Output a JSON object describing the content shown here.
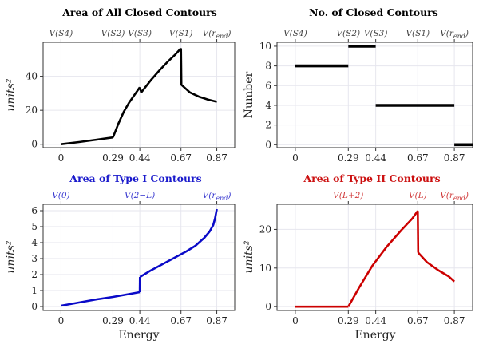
{
  "chart_data": [
    {
      "id": "p1",
      "type": "line",
      "title": "Area of All Closed Contours",
      "title_color": "#000000",
      "line_color": "#000000",
      "top_ticks": [
        {
          "label": "V(S4)",
          "x": 0
        },
        {
          "label": "V(S2)",
          "x": 0.29
        },
        {
          "label": "V(S3)",
          "x": 0.44
        },
        {
          "label": "V(S1)",
          "x": 0.67
        },
        {
          "label": "V(r_end)",
          "x": 0.87
        }
      ],
      "top_tick_color": "#444444",
      "xticks": [
        0,
        0.29,
        0.44,
        0.67,
        0.87
      ],
      "yticks": [
        0,
        20,
        40
      ],
      "xlim": [
        -0.1,
        0.97
      ],
      "ylim": [
        -2,
        60
      ],
      "xlabel": "",
      "ylabel": "units²",
      "ylabel_italic": true,
      "grid": true,
      "series": [
        {
          "x": [
            0,
            0.1,
            0.2,
            0.29
          ],
          "y": [
            0,
            1.3,
            2.7,
            4
          ]
        },
        {
          "x": [
            0.29,
            0.32,
            0.35,
            0.38,
            0.41,
            0.44
          ],
          "y": [
            4,
            12,
            19,
            24.5,
            29,
            33.5
          ]
        },
        {
          "x": [
            0.44,
            0.448
          ],
          "y": [
            33.5,
            30.5
          ]
        },
        {
          "x": [
            0.448,
            0.5,
            0.55,
            0.6,
            0.64,
            0.67
          ],
          "y": [
            30.5,
            37.5,
            43.5,
            49,
            53,
            56.5
          ]
        },
        {
          "x": [
            0.67,
            0.672
          ],
          "y": [
            56.5,
            35
          ]
        },
        {
          "x": [
            0.672,
            0.72,
            0.77,
            0.82,
            0.87
          ],
          "y": [
            35,
            30.5,
            28,
            26.3,
            25
          ]
        }
      ]
    },
    {
      "id": "p2",
      "type": "line",
      "title": "No. of Closed  Contours",
      "title_color": "#000000",
      "line_color": "#000000",
      "top_ticks": [
        {
          "label": "V(S4)",
          "x": 0
        },
        {
          "label": "V(S2)",
          "x": 0.29
        },
        {
          "label": "V(S3)",
          "x": 0.44
        },
        {
          "label": "V(S1)",
          "x": 0.67
        },
        {
          "label": "V(r_end)",
          "x": 0.87
        }
      ],
      "top_tick_color": "#444444",
      "xticks": [
        0,
        0.29,
        0.44,
        0.67,
        0.87
      ],
      "yticks": [
        0,
        2,
        4,
        6,
        8,
        10
      ],
      "xlim": [
        -0.1,
        0.97
      ],
      "ylim": [
        -0.3,
        10.4
      ],
      "xlabel": "",
      "ylabel": "Number",
      "ylabel_italic": false,
      "grid": true,
      "series": [
        {
          "x": [
            0,
            0.29
          ],
          "y": [
            8,
            8
          ]
        },
        {
          "x": [
            0.29,
            0.44
          ],
          "y": [
            10,
            10
          ]
        },
        {
          "x": [
            0.44,
            0.87
          ],
          "y": [
            4,
            4
          ]
        },
        {
          "x": [
            0.87,
            0.97
          ],
          "y": [
            0,
            0
          ]
        }
      ]
    },
    {
      "id": "p3",
      "type": "line",
      "title": "Area of Type I Contours",
      "title_color": "#1a1acc",
      "line_color": "#0a0ac8",
      "top_ticks": [
        {
          "label": "V(0)",
          "x": 0
        },
        {
          "label": "V(2−L)",
          "x": 0.44
        },
        {
          "label": "V(r_end)",
          "x": 0.87
        }
      ],
      "top_tick_color": "#3a3ad0",
      "xticks": [
        0,
        0.29,
        0.44,
        0.67,
        0.87
      ],
      "yticks": [
        0,
        1,
        2,
        3,
        4,
        5,
        6
      ],
      "xlim": [
        -0.1,
        0.97
      ],
      "ylim": [
        -0.25,
        6.4
      ],
      "xlabel": "Energy",
      "ylabel": "units²",
      "ylabel_italic": true,
      "grid": true,
      "series": [
        {
          "x": [
            0,
            0.1,
            0.2,
            0.29,
            0.35,
            0.44
          ],
          "y": [
            0.05,
            0.25,
            0.45,
            0.6,
            0.72,
            0.9
          ]
        },
        {
          "x": [
            0.44,
            0.441
          ],
          "y": [
            0.9,
            1.85
          ]
        },
        {
          "x": [
            0.441,
            0.5,
            0.55,
            0.6,
            0.65,
            0.7,
            0.75,
            0.8,
            0.83,
            0.85,
            0.86,
            0.87
          ],
          "y": [
            1.85,
            2.25,
            2.55,
            2.85,
            3.15,
            3.45,
            3.8,
            4.3,
            4.7,
            5.1,
            5.5,
            6.1
          ]
        }
      ]
    },
    {
      "id": "p4",
      "type": "line",
      "title": "Area of Type II Contours",
      "title_color": "#cc1111",
      "line_color": "#cc0000",
      "top_ticks": [
        {
          "label": "V(L+2)",
          "x": 0.29
        },
        {
          "label": "V(L)",
          "x": 0.67
        },
        {
          "label": "V(r_end)",
          "x": 0.87
        }
      ],
      "top_tick_color": "#d03a3a",
      "xticks": [
        0,
        0.29,
        0.44,
        0.67,
        0.87
      ],
      "yticks": [
        0,
        10,
        20
      ],
      "xlim": [
        -0.1,
        0.97
      ],
      "ylim": [
        -1,
        26.5
      ],
      "xlabel": "Energy",
      "ylabel": "units²",
      "ylabel_italic": true,
      "grid": true,
      "series": [
        {
          "x": [
            0,
            0.29
          ],
          "y": [
            0,
            0
          ]
        },
        {
          "x": [
            0.29,
            0.35,
            0.42,
            0.5,
            0.58,
            0.64,
            0.67
          ],
          "y": [
            0,
            5,
            10.5,
            15.5,
            19.8,
            22.8,
            24.8
          ]
        },
        {
          "x": [
            0.67,
            0.672
          ],
          "y": [
            24.8,
            14
          ]
        },
        {
          "x": [
            0.672,
            0.72,
            0.78,
            0.84,
            0.87
          ],
          "y": [
            14,
            11.5,
            9.5,
            7.8,
            6.5
          ]
        }
      ]
    }
  ]
}
